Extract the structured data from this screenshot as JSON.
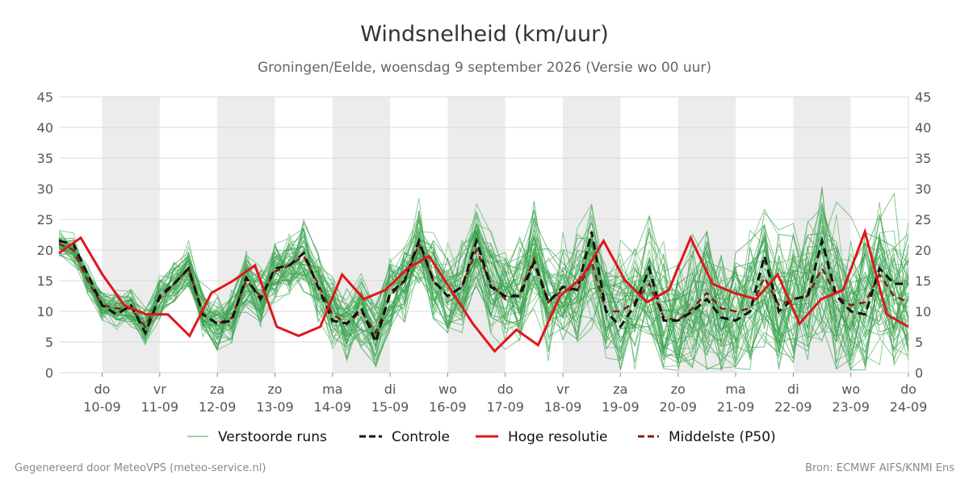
{
  "chart_data": {
    "type": "line",
    "title": "Windsnelheid (km/uur)",
    "subtitle": "Groningen/Eelde, woensdag  9 september 2026 (Versie wo 00 uur)",
    "xlabel": "",
    "ylabel": "",
    "ylim": [
      0,
      45
    ],
    "yticks": [
      0,
      5,
      10,
      15,
      20,
      25,
      30,
      35,
      40,
      45
    ],
    "grid": true,
    "legend_position": "bottom",
    "x_unit": "days from start of 10-09",
    "xlim": [
      -0.75,
      14
    ],
    "day_ticks": [
      {
        "day": "do",
        "date": "10-09"
      },
      {
        "day": "vr",
        "date": "11-09"
      },
      {
        "day": "za",
        "date": "12-09"
      },
      {
        "day": "zo",
        "date": "13-09"
      },
      {
        "day": "ma",
        "date": "14-09"
      },
      {
        "day": "di",
        "date": "15-09"
      },
      {
        "day": "wo",
        "date": "16-09"
      },
      {
        "day": "do",
        "date": "17-09"
      },
      {
        "day": "vr",
        "date": "18-09"
      },
      {
        "day": "za",
        "date": "19-09"
      },
      {
        "day": "zo",
        "date": "20-09"
      },
      {
        "day": "ma",
        "date": "21-09"
      },
      {
        "day": "di",
        "date": "22-09"
      },
      {
        "day": "wo",
        "date": "23-09"
      },
      {
        "day": "do",
        "date": "24-09"
      }
    ],
    "shaded_days": [
      0,
      2,
      4,
      6,
      8,
      10,
      12
    ],
    "legend": [
      {
        "label": "Verstoorde runs",
        "color": "#3aa14d",
        "style": "thin"
      },
      {
        "label": "Controle",
        "color": "#111111",
        "style": "dashed"
      },
      {
        "label": "Hoge resolutie",
        "color": "#e0161b",
        "style": "solid"
      },
      {
        "label": "Middelste (P50)",
        "color": "#8b1a1a",
        "style": "dashed"
      }
    ],
    "controle": [
      21.5,
      21,
      16,
      11,
      9.5,
      11,
      6.5,
      12.5,
      14.5,
      17,
      9.5,
      8,
      8.5,
      15.5,
      12,
      17,
      17.5,
      19.5,
      14,
      8.5,
      8,
      10.5,
      5,
      13,
      15,
      21.5,
      15,
      12.5,
      14,
      21.5,
      14,
      12.5,
      12.5,
      18,
      11.5,
      14,
      13.5,
      23,
      10,
      7.5,
      11,
      17,
      8.5,
      8.5,
      10,
      12,
      9,
      8.5,
      10,
      19,
      10,
      12,
      12.5,
      21.5,
      12.5,
      10,
      9.5,
      17,
      14.5,
      14.5
    ],
    "hoge_resolutie": [
      19.5,
      22,
      16,
      11,
      9.5,
      9.5,
      6,
      13,
      15,
      17.5,
      7.5,
      6,
      7.5,
      16,
      12,
      13.5,
      17,
      19,
      13.5,
      8,
      3.5,
      7,
      4.5,
      12.5,
      15.5,
      21.5,
      15,
      11.5,
      13.5,
      22,
      14.5,
      13,
      12,
      16,
      8,
      12,
      13.5,
      23,
      9.5,
      7.5
    ],
    "p50": [
      21,
      20,
      15,
      11,
      10.5,
      10.5,
      7.5,
      12,
      14.5,
      17,
      9.5,
      8,
      9,
      15,
      12.5,
      16.5,
      17.5,
      19,
      14.5,
      9.5,
      8,
      10,
      6.5,
      12.5,
      15,
      21,
      15,
      12.5,
      14,
      20,
      14.5,
      12,
      13,
      18.5,
      11.5,
      13.5,
      13.5,
      18,
      10,
      10,
      11.5,
      14.5,
      9,
      8.5,
      10.5,
      13,
      10.5,
      10,
      10.5,
      15.5,
      11,
      12,
      12.5,
      17,
      12.5,
      11,
      11.5,
      16,
      12.5,
      11.5
    ],
    "ensemble_count": 50,
    "ensemble_seed": 7
  },
  "footer": {
    "left": "Gegenereerd door MeteoVPS (meteo-service.nl)",
    "right": "Bron: ECMWF AIFS/KNMI Ens"
  }
}
